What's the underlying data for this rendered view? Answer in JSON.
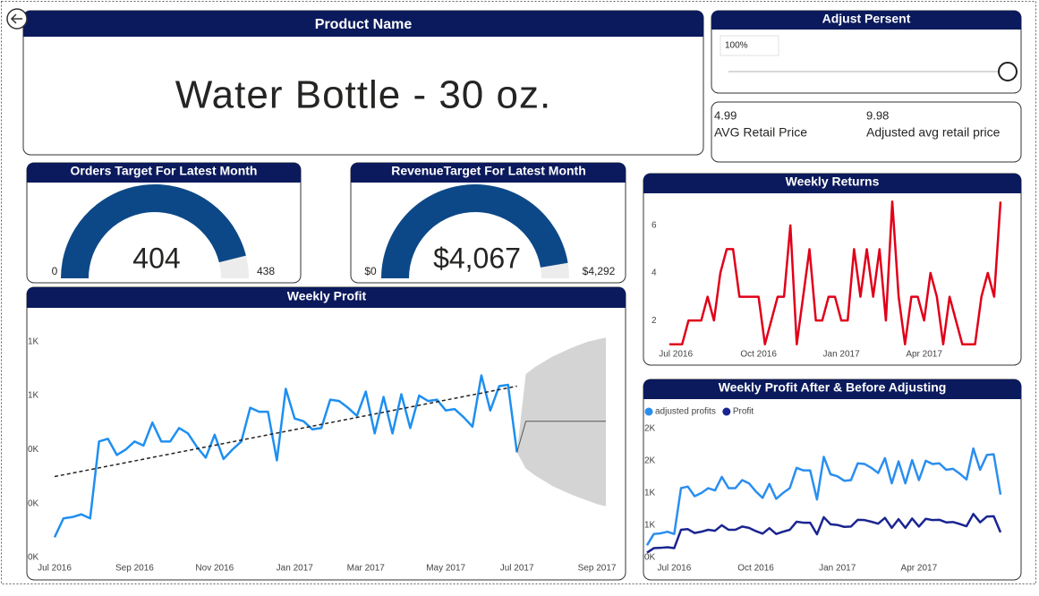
{
  "product_card": {
    "header": "Product Name",
    "value": "Water Bottle - 30 oz."
  },
  "slicer": {
    "header": "Adjust Persent",
    "value": "100%"
  },
  "price_card": {
    "avg_value": 4.99,
    "avg_label": "AVG Retail Price",
    "adjusted_value": 9.98,
    "adjusted_label": "Adjusted avg retail price"
  },
  "chart_data": [
    {
      "type": "gauge",
      "title": "Orders Target For Latest Month",
      "value": 404,
      "min": 0,
      "max": 438,
      "color": "#0c4887",
      "track_color": "#ececec"
    },
    {
      "type": "gauge",
      "title": "RevenueTarget For Latest Month",
      "value": 4067,
      "value_label": "$4,067",
      "min": {
        "value": 0,
        "label": "$0"
      },
      "max": {
        "value": 4292,
        "label": "$4,292"
      },
      "color": "#0c4887",
      "track_color": "#ececec"
    },
    {
      "type": "line",
      "title": "Weekly Returns",
      "color": "#e00019",
      "categories": [
        null,
        "Jul 2016",
        null,
        null,
        null,
        null,
        null,
        null,
        null,
        null,
        null,
        null,
        null,
        null,
        "Oct 2016",
        null,
        null,
        null,
        null,
        null,
        null,
        null,
        null,
        null,
        null,
        null,
        null,
        "Jan 2017",
        null,
        null,
        null,
        null,
        null,
        null,
        null,
        null,
        null,
        null,
        null,
        null,
        "Apr 2017",
        null,
        null,
        null,
        null,
        null,
        null,
        null,
        null,
        null,
        null,
        null,
        null
      ],
      "values": [
        1,
        1,
        1,
        2,
        2,
        2,
        3,
        2,
        4,
        5,
        5,
        3,
        3,
        3,
        3,
        1,
        2,
        3,
        3,
        6,
        1,
        3,
        5,
        2,
        2,
        3,
        3,
        2,
        2,
        5,
        3,
        5,
        3,
        5,
        2,
        7,
        3,
        1,
        3,
        3,
        2,
        4,
        3,
        1,
        3,
        2,
        1,
        1,
        1,
        3,
        4,
        3,
        7
      ],
      "ylim": [
        0.5,
        7.5
      ],
      "yticks": [
        2,
        4,
        6
      ]
    },
    {
      "type": "line",
      "title": "Weekly Profit",
      "color": "#1e8ff0",
      "categories": [
        "Jul 2016",
        null,
        null,
        null,
        null,
        null,
        null,
        null,
        null,
        "Sep 2016",
        null,
        null,
        null,
        null,
        null,
        null,
        null,
        null,
        "Nov 2016",
        null,
        null,
        null,
        null,
        null,
        null,
        null,
        null,
        "Jan 2017",
        null,
        null,
        null,
        null,
        null,
        null,
        null,
        "Mar 2017",
        null,
        null,
        null,
        null,
        null,
        null,
        null,
        null,
        "May 2017",
        null,
        null,
        null,
        null,
        null,
        null,
        null,
        "Jul 2017",
        null,
        null,
        null,
        null,
        null,
        null,
        null,
        null,
        "Sep 2017",
        null
      ],
      "values": [
        75,
        145,
        150,
        160,
        145,
        430,
        440,
        380,
        400,
        430,
        415,
        500,
        430,
        430,
        480,
        460,
        410,
        370,
        455,
        365,
        400,
        430,
        555,
        540,
        540,
        360,
        625,
        515,
        505,
        475,
        480,
        585,
        580,
        555,
        525,
        615,
        460,
        595,
        460,
        605,
        480,
        600,
        580,
        585,
        545,
        550,
        520,
        485,
        675,
        545,
        635,
        640,
        390,
        null,
        null,
        null,
        null,
        null,
        null,
        null,
        null,
        null,
        null
      ],
      "trendline": {
        "from": 300,
        "to": 635,
        "color": "#222222"
      },
      "forecast": {
        "color": "#555555",
        "band_color": "#d4d4d4",
        "values": [
          null,
          null,
          null,
          null,
          null,
          null,
          null,
          null,
          null,
          null,
          null,
          null,
          null,
          null,
          null,
          null,
          null,
          null,
          null,
          null,
          null,
          null,
          null,
          null,
          null,
          null,
          null,
          null,
          null,
          null,
          null,
          null,
          null,
          null,
          null,
          null,
          null,
          null,
          null,
          null,
          null,
          null,
          null,
          null,
          null,
          null,
          null,
          null,
          null,
          null,
          null,
          null,
          390,
          505,
          505,
          505,
          505,
          505,
          505,
          505,
          505,
          505,
          505
        ],
        "upper": [
          null,
          null,
          null,
          null,
          null,
          null,
          null,
          null,
          null,
          null,
          null,
          null,
          null,
          null,
          null,
          null,
          null,
          null,
          null,
          null,
          null,
          null,
          null,
          null,
          null,
          null,
          null,
          null,
          null,
          null,
          null,
          null,
          null,
          null,
          null,
          null,
          null,
          null,
          null,
          null,
          null,
          null,
          null,
          null,
          null,
          null,
          null,
          null,
          null,
          null,
          null,
          null,
          390,
          680,
          705,
          725,
          745,
          760,
          775,
          788,
          800,
          808,
          815
        ],
        "lower": [
          null,
          null,
          null,
          null,
          null,
          null,
          null,
          null,
          null,
          null,
          null,
          null,
          null,
          null,
          null,
          null,
          null,
          null,
          null,
          null,
          null,
          null,
          null,
          null,
          null,
          null,
          null,
          null,
          null,
          null,
          null,
          null,
          null,
          null,
          null,
          null,
          null,
          null,
          null,
          null,
          null,
          null,
          null,
          null,
          null,
          null,
          null,
          null,
          null,
          null,
          null,
          null,
          390,
          330,
          305,
          285,
          265,
          250,
          235,
          222,
          210,
          198,
          190
        ]
      },
      "ylim": [
        0,
        840
      ],
      "yticks": [
        {
          "value": 0,
          "label": "0K"
        },
        {
          "value": 200,
          "label": "0K"
        },
        {
          "value": 400,
          "label": "0K"
        },
        {
          "value": 600,
          "label": "1K"
        },
        {
          "value": 800,
          "label": "1K"
        }
      ]
    },
    {
      "type": "line",
      "title": "Weekly Profit After & Before Adjusting",
      "categories": [
        null,
        null,
        null,
        null,
        "Jul 2016",
        null,
        null,
        null,
        null,
        null,
        null,
        null,
        null,
        null,
        null,
        null,
        "Oct 2016",
        null,
        null,
        null,
        null,
        null,
        null,
        null,
        null,
        null,
        null,
        null,
        "Jan 2017",
        null,
        null,
        null,
        null,
        null,
        null,
        null,
        null,
        null,
        null,
        null,
        "Apr 2017",
        null,
        null,
        null,
        null,
        null,
        null,
        null,
        null,
        null,
        null,
        null,
        null
      ],
      "series": [
        {
          "name": "adjusted profits",
          "color": "#2a8ef0",
          "values": [
            190,
            365,
            375,
            400,
            365,
            1075,
            1100,
            950,
            1000,
            1075,
            1040,
            1250,
            1075,
            1075,
            1200,
            1150,
            1025,
            925,
            1140,
            910,
            1000,
            1075,
            1390,
            1350,
            1350,
            900,
            1560,
            1290,
            1260,
            1190,
            1200,
            1460,
            1450,
            1390,
            1310,
            1540,
            1150,
            1490,
            1150,
            1510,
            1200,
            1500,
            1450,
            1460,
            1360,
            1375,
            1300,
            1210,
            1690,
            1360,
            1590,
            1600,
            975
          ]
        },
        {
          "name": "Profit",
          "color": "#1a2590",
          "values": [
            75,
            145,
            150,
            160,
            145,
            430,
            440,
            380,
            400,
            430,
            415,
            500,
            430,
            430,
            480,
            460,
            410,
            370,
            455,
            365,
            400,
            430,
            555,
            540,
            540,
            360,
            625,
            515,
            505,
            475,
            480,
            585,
            580,
            555,
            525,
            615,
            460,
            595,
            460,
            605,
            480,
            600,
            580,
            585,
            545,
            550,
            520,
            485,
            675,
            545,
            635,
            640,
            390
          ]
        }
      ],
      "ylim": [
        0,
        2150
      ],
      "yticks": [
        {
          "value": 0,
          "label": "0K"
        },
        {
          "value": 500,
          "label": "1K"
        },
        {
          "value": 1000,
          "label": "1K"
        },
        {
          "value": 1500,
          "label": "2K"
        },
        {
          "value": 2000,
          "label": "2K"
        }
      ]
    }
  ]
}
